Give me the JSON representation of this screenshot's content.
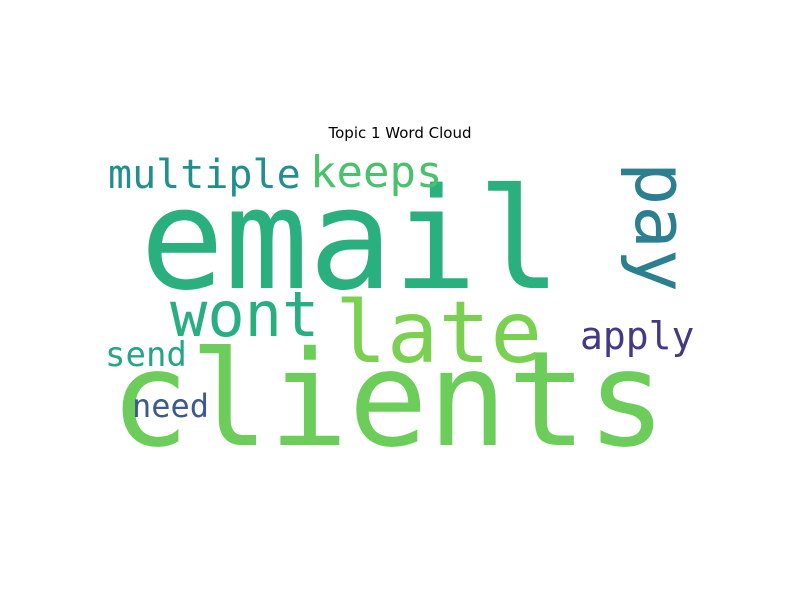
{
  "chart_data": {
    "type": "wordcloud",
    "title": "Topic 1 Word Cloud",
    "words": [
      {
        "text": "email",
        "weight": 1.0,
        "color": "#2aaf7f",
        "orientation": "horizontal"
      },
      {
        "text": "clients",
        "weight": 0.95,
        "color": "#6ccd5a",
        "orientation": "horizontal"
      },
      {
        "text": "late",
        "weight": 0.62,
        "color": "#7ad151",
        "orientation": "horizontal"
      },
      {
        "text": "pay",
        "weight": 0.5,
        "color": "#2c7f8e",
        "orientation": "vertical"
      },
      {
        "text": "wont",
        "weight": 0.42,
        "color": "#29af7f",
        "orientation": "horizontal"
      },
      {
        "text": "keeps",
        "weight": 0.32,
        "color": "#4ac16d",
        "orientation": "horizontal"
      },
      {
        "text": "multiple",
        "weight": 0.28,
        "color": "#21908d",
        "orientation": "horizontal"
      },
      {
        "text": "apply",
        "weight": 0.26,
        "color": "#443a83",
        "orientation": "horizontal"
      },
      {
        "text": "send",
        "weight": 0.22,
        "color": "#25a585",
        "orientation": "horizontal"
      },
      {
        "text": "need",
        "weight": 0.2,
        "color": "#3d5a8c",
        "orientation": "horizontal"
      }
    ]
  }
}
